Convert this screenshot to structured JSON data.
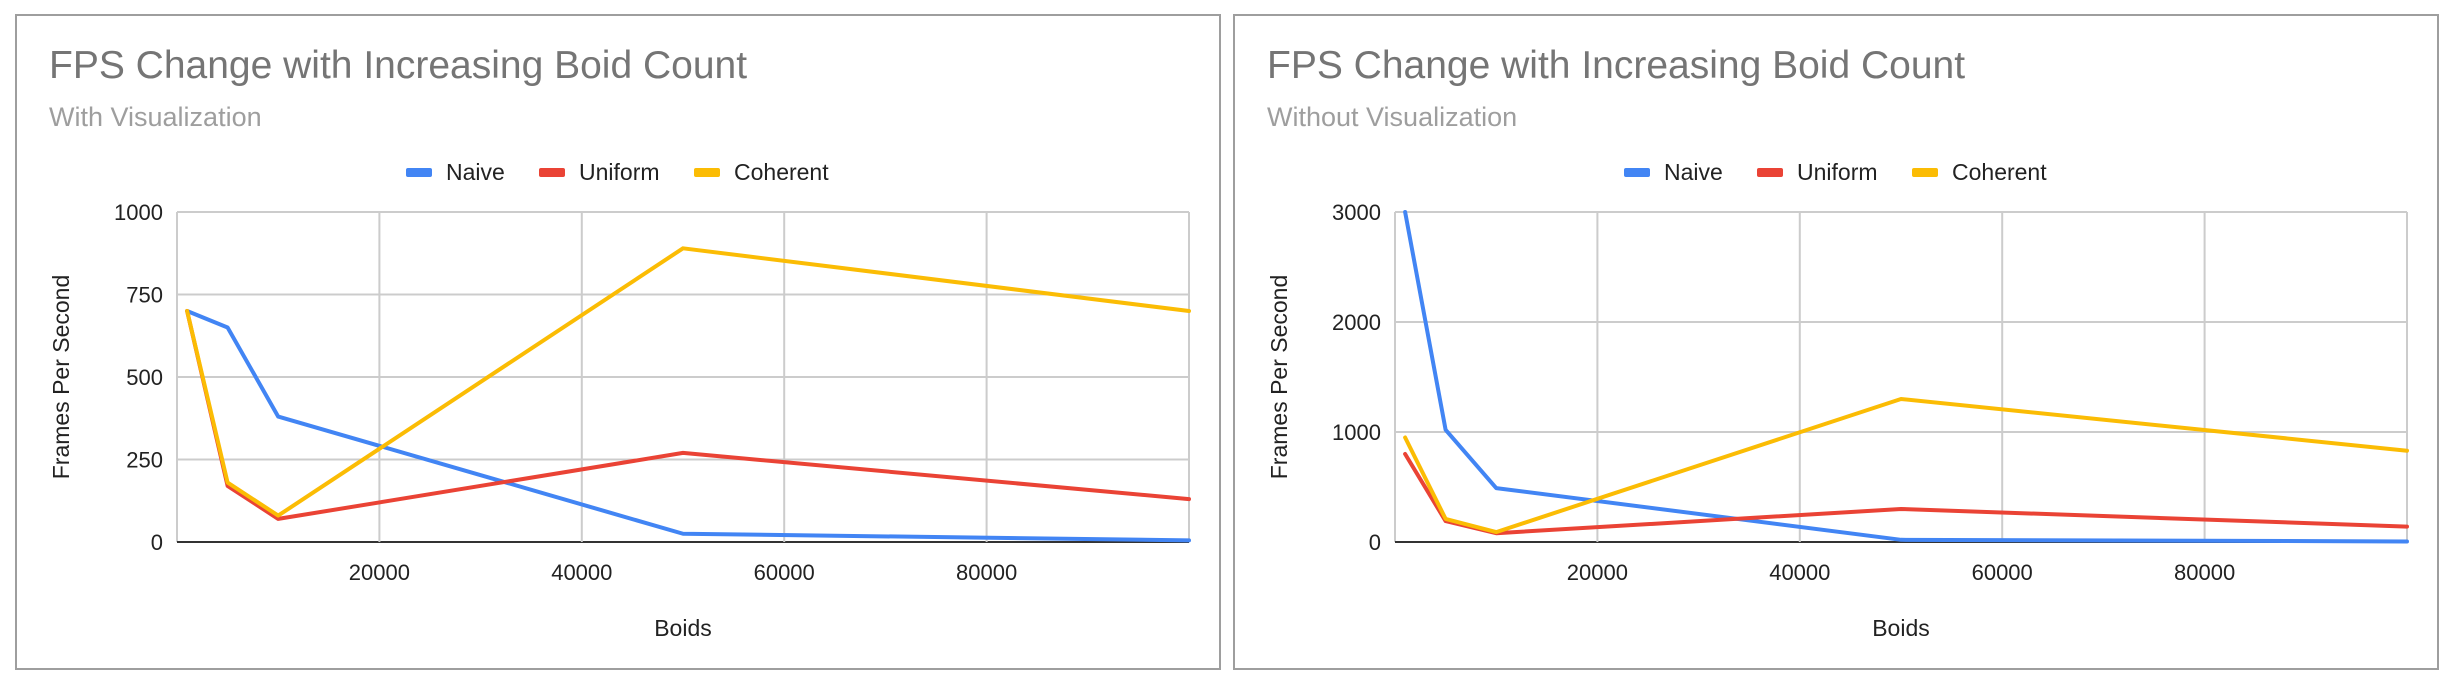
{
  "chart_data": [
    {
      "type": "line",
      "title": "FPS Change with Increasing Boid Count",
      "subtitle": "With Visualization",
      "xlabel": "Boids",
      "ylabel": "Frames Per Second",
      "xlim": [
        0,
        100000
      ],
      "ylim": [
        0,
        1000
      ],
      "x_ticks": [
        20000,
        40000,
        60000,
        80000
      ],
      "x_tick_labels": [
        "20000",
        "40000",
        "60000",
        "80000"
      ],
      "y_ticks": [
        0,
        250,
        500,
        750,
        1000
      ],
      "y_tick_labels": [
        "0",
        "250",
        "500",
        "750",
        "1000"
      ],
      "grid": true,
      "legend_position": "top",
      "x": [
        1000,
        5000,
        10000,
        50000,
        100000
      ],
      "series": [
        {
          "name": "Naive",
          "color": "#4285f4",
          "values": [
            700,
            650,
            380,
            25,
            5
          ]
        },
        {
          "name": "Uniform",
          "color": "#ea4335",
          "values": [
            700,
            170,
            70,
            270,
            130
          ]
        },
        {
          "name": "Coherent",
          "color": "#fbbc04",
          "values": [
            700,
            180,
            80,
            890,
            700
          ]
        }
      ]
    },
    {
      "type": "line",
      "title": "FPS Change with Increasing Boid Count",
      "subtitle": "Without Visualization",
      "xlabel": "Boids",
      "ylabel": "Frames Per Second",
      "xlim": [
        0,
        100000
      ],
      "ylim": [
        0,
        3000
      ],
      "x_ticks": [
        20000,
        40000,
        60000,
        80000
      ],
      "x_tick_labels": [
        "20000",
        "40000",
        "60000",
        "80000"
      ],
      "y_ticks": [
        0,
        1000,
        2000,
        3000
      ],
      "y_tick_labels": [
        "0",
        "1000",
        "2000",
        "3000"
      ],
      "grid": true,
      "legend_position": "top",
      "x": [
        1000,
        5000,
        10000,
        50000,
        100000
      ],
      "series": [
        {
          "name": "Naive",
          "color": "#4285f4",
          "values": [
            3000,
            1020,
            490,
            20,
            5
          ]
        },
        {
          "name": "Uniform",
          "color": "#ea4335",
          "values": [
            800,
            190,
            80,
            300,
            140
          ]
        },
        {
          "name": "Coherent",
          "color": "#fbbc04",
          "values": [
            950,
            210,
            90,
            1300,
            830
          ]
        }
      ]
    }
  ]
}
